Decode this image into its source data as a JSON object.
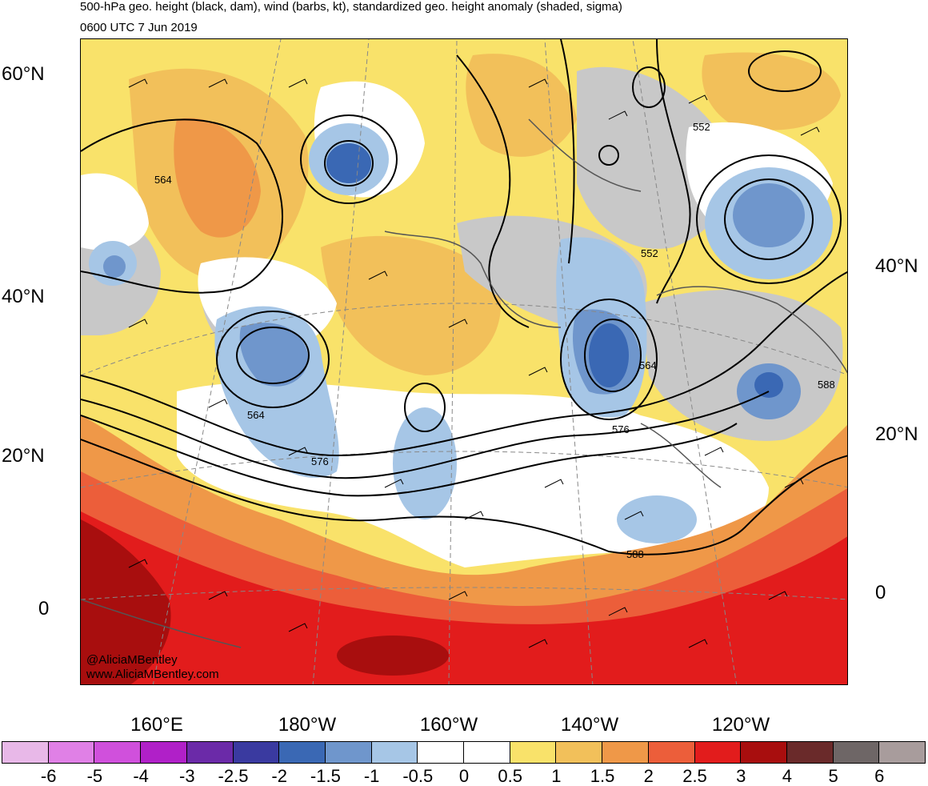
{
  "header": {
    "title": "500-hPa geo. height (black, dam), wind (barbs, kt), standardized geo. height anomaly (shaded, sigma)",
    "valid_time": "0600 UTC 7 Jun 2019"
  },
  "map": {
    "latitude_labels_left": [
      "60°N",
      "40°N",
      "20°N",
      "0"
    ],
    "latitude_labels_right": [
      "40°N",
      "20°N",
      "0"
    ],
    "longitude_labels": [
      "160°E",
      "180°W",
      "160°W",
      "140°W",
      "120°W"
    ],
    "contour_labels": [
      "564",
      "552",
      "552",
      "564",
      "564",
      "576",
      "576",
      "588",
      "588"
    ],
    "watermark": [
      "@AliciaMBentley",
      "www.AliciaMBentley.com"
    ]
  },
  "colorbar": {
    "labels": [
      "-6",
      "-5",
      "-4",
      "-3",
      "-2.5",
      "-2",
      "-1.5",
      "-1",
      "-0.5",
      "0",
      "0.5",
      "1",
      "1.5",
      "2",
      "2.5",
      "3",
      "4",
      "5",
      "6"
    ],
    "colors": [
      "#e8b8e8",
      "#e080e6",
      "#d050dc",
      "#b020c8",
      "#6b2aa8",
      "#3a3aa0",
      "#3a68b4",
      "#6f96cc",
      "#a6c6e6",
      "#ffffff",
      "#ffffff",
      "#f9e26a",
      "#f2c05a",
      "#ef9848",
      "#ec5e3a",
      "#e21c1c",
      "#a80e0e",
      "#6a2a2a",
      "#6e6666",
      "#a89c9c"
    ]
  }
}
